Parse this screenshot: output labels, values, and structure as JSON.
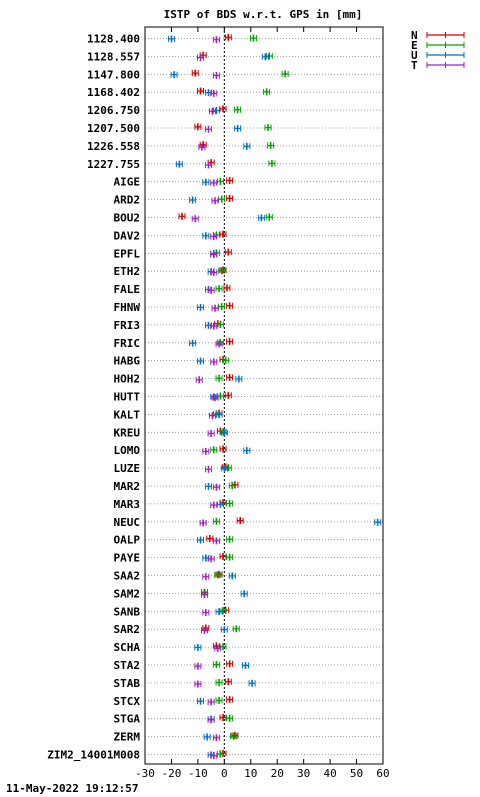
{
  "chart_data": {
    "type": "scatter",
    "title": "ISTP of BDS w.r.t. GPS in [mm]",
    "xlim": [
      -30,
      60
    ],
    "xticks": [
      "-30",
      "-20",
      "-10",
      "0",
      "10",
      "20",
      "30",
      "40",
      "50",
      "60"
    ],
    "grid": true,
    "legend_position": "top-right",
    "categories": [
      "1128.400",
      "1128.557",
      "1147.800",
      "1168.402",
      "1206.750",
      "1207.500",
      "1226.558",
      "1227.755",
      "AIGE",
      "ARD2",
      "BOU2",
      "DAV2",
      "EPFL",
      "ETH2",
      "FALE",
      "FHNW",
      "FRI3",
      "FRIC",
      "HABG",
      "HOH2",
      "HUTT",
      "KALT",
      "KREU",
      "LOMO",
      "LUZE",
      "MAR2",
      "MAR3",
      "NEUC",
      "OALP",
      "PAYE",
      "SAA2",
      "SAM2",
      "SANB",
      "SAR2",
      "SCHA",
      "STA2",
      "STAB",
      "STCX",
      "STGA",
      "ZERM",
      "ZIM2_14001M008"
    ],
    "series": [
      {
        "name": "N",
        "color": "#cc0000",
        "values": [
          1.5,
          -8,
          -11,
          -9,
          -0.5,
          -10,
          -8,
          -5,
          2,
          2,
          -16,
          -0.5,
          1.5,
          -0.5,
          1,
          2,
          -2.5,
          2,
          -0.5,
          2,
          1.5,
          -2,
          -1.5,
          -0.5,
          0.5,
          4,
          -0.5,
          6,
          -5.5,
          -0.5,
          -2,
          -7.5,
          0.5,
          -7,
          -3,
          2,
          1.5,
          2,
          -0.5,
          4,
          -0.5
        ]
      },
      {
        "name": "E",
        "color": "#00a000",
        "values": [
          11,
          17,
          23,
          16,
          5,
          16.5,
          17.5,
          18,
          -1.5,
          -1,
          17,
          -3,
          -3,
          -1,
          -2,
          -1,
          -1.5,
          -1.5,
          0.5,
          -2,
          -1.5,
          -3,
          -0.5,
          -4,
          1.5,
          3,
          2,
          -3,
          2,
          2,
          -2.5,
          -7.5,
          -0.5,
          4.5,
          -0.5,
          -3,
          -2,
          -2,
          2,
          3.5,
          -1.5
        ]
      },
      {
        "name": "U",
        "color": "#0070c0",
        "values": [
          -20,
          15.5,
          -19,
          -6,
          -3,
          5,
          8.5,
          -17,
          -7,
          -12,
          14,
          -7,
          -4,
          -5,
          -6,
          -9,
          -6,
          -12,
          -9,
          5.5,
          -4,
          -2,
          0,
          8.5,
          0,
          -6,
          -1.5,
          58,
          -9,
          -7,
          3,
          7.5,
          -2,
          0,
          -10,
          8,
          10.5,
          -9,
          -5,
          -6.5,
          -5
        ]
      },
      {
        "name": "T",
        "color": "#a020c0",
        "values": [
          -3,
          -9,
          -3,
          -4,
          -4.5,
          -6,
          -8.5,
          -6,
          -4,
          -3.5,
          -11,
          -4,
          -4,
          -4,
          -5,
          -3.5,
          -4,
          -2,
          -4,
          -9.5,
          -3.5,
          -4.5,
          -5,
          -7,
          -6,
          -3,
          -4,
          -8,
          -3,
          -5,
          -7,
          -7.5,
          -7,
          -7.5,
          -2.5,
          -10,
          -10,
          -5,
          -5,
          -3,
          -4
        ]
      }
    ]
  },
  "footer": {
    "timestamp": "11-May-2022 19:12:57"
  }
}
